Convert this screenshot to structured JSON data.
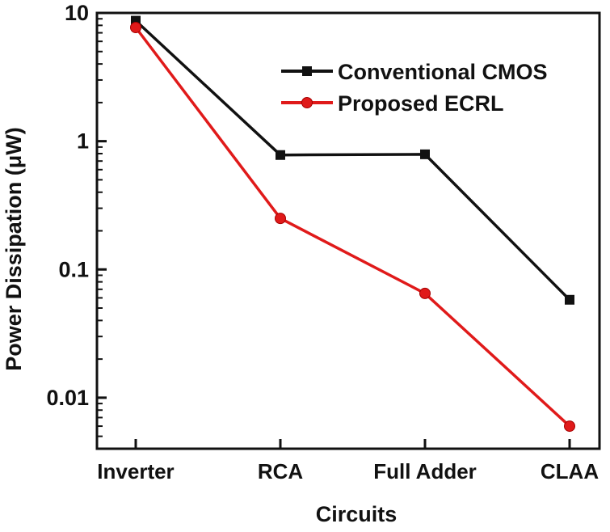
{
  "chart_data": {
    "type": "line",
    "title": "",
    "xlabel": "Circuits",
    "ylabel": "Power Dissipation (μW)",
    "yscale": "log",
    "ylim": [
      0.004,
      10
    ],
    "yticks": [
      "10",
      "1",
      "0.1",
      "0.01"
    ],
    "ytick_values": [
      10,
      1,
      0.1,
      0.01
    ],
    "categories": [
      "Inverter",
      "RCA",
      "Full Adder",
      "CLAA"
    ],
    "grid": false,
    "legend_position": "top-right",
    "series": [
      {
        "name": "Conventional CMOS",
        "values": [
          8.7,
          0.78,
          0.79,
          0.058
        ],
        "color": "#111111",
        "marker": "square"
      },
      {
        "name": "Proposed ECRL",
        "values": [
          7.7,
          0.25,
          0.065,
          0.006
        ],
        "color": "#e01a1a",
        "marker": "circle"
      }
    ]
  }
}
